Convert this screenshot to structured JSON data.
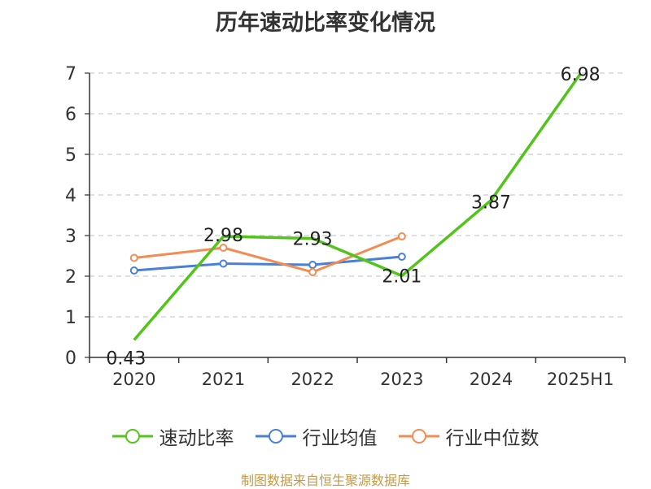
{
  "chart_data": {
    "type": "line",
    "title": "历年速动比率变化情况",
    "categories": [
      "2020",
      "2021",
      "2022",
      "2023",
      "2024",
      "2025H1"
    ],
    "ylim": [
      0,
      7
    ],
    "yticks": [
      "0",
      "1",
      "2",
      "3",
      "4",
      "5",
      "6",
      "7"
    ],
    "grid": true,
    "legend_position": "bottom",
    "series": [
      {
        "name": "速动比率",
        "color": "#52c41a",
        "values": [
          0.43,
          2.98,
          2.93,
          2.01,
          3.87,
          6.98
        ],
        "data_labels": [
          "0.43",
          "2.98",
          "2.93",
          "2.01",
          "3.87",
          "6.98"
        ]
      },
      {
        "name": "行业均值",
        "color": "#4a7fd8",
        "values": [
          2.14,
          2.31,
          2.28,
          2.48,
          null,
          null
        ]
      },
      {
        "name": "行业中位数",
        "color": "#f28c52",
        "values": [
          2.45,
          2.7,
          2.1,
          2.98,
          null,
          null
        ]
      }
    ]
  },
  "source_note": "制图数据来自恒生聚源数据库"
}
